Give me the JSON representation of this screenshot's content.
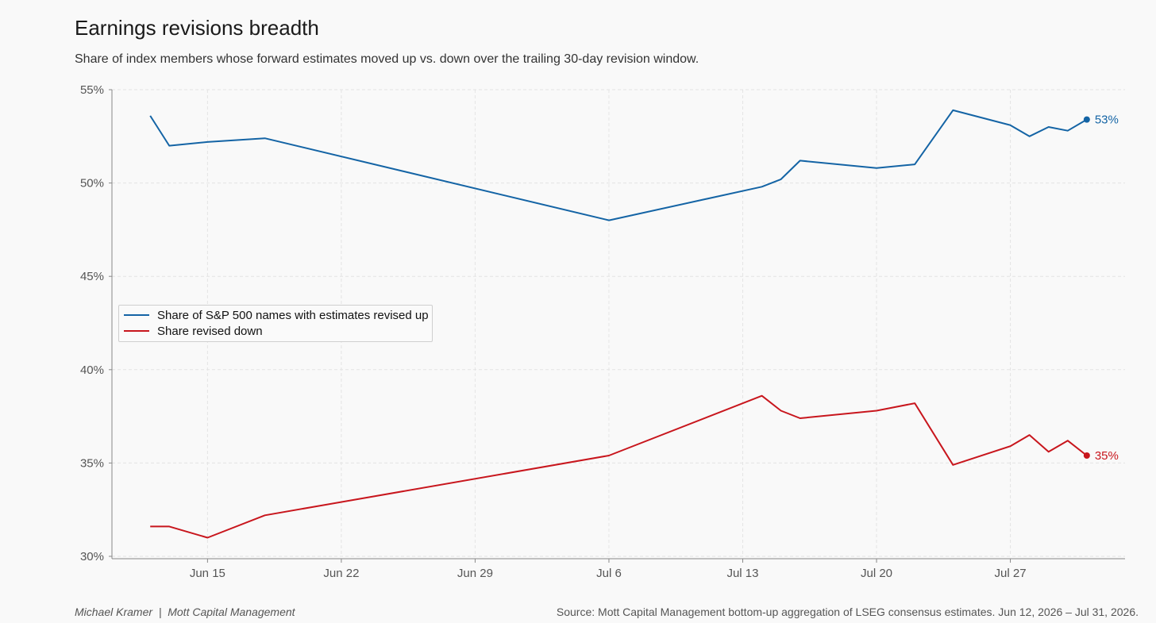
{
  "title": "Earnings revisions breadth",
  "subtitle": "Share of index members whose forward estimates moved up vs. down over the trailing 30-day revision window.",
  "footer": {
    "author": "Michael Kramer",
    "separator": "|",
    "org": "Mott Capital Management",
    "source": "Source: Mott Capital Management bottom-up aggregation of LSEG consensus estimates. Jun 12, 2026 – Jul 31, 2026."
  },
  "chart_data": {
    "type": "line",
    "x_ticks": [
      "Jun 15",
      "Jun 22",
      "Jun 29",
      "Jul 6",
      "Jul 13",
      "Jul 20",
      "Jul 27"
    ],
    "y_ticks": [
      "30%",
      "35%",
      "40%",
      "45%",
      "50%",
      "55%"
    ],
    "ylim": [
      30,
      55
    ],
    "xlim": [
      "2026-06-10",
      "2026-08-02"
    ],
    "grid": true,
    "legend_position": "center-left",
    "series": [
      {
        "name": "Share of S&P 500 names with estimates revised up",
        "color": "#1464a5",
        "end_label": "53%",
        "points": [
          [
            "2026-06-12",
            53.6
          ],
          [
            "2026-06-13",
            52.0
          ],
          [
            "2026-06-15",
            52.2
          ],
          [
            "2026-06-18",
            52.4
          ],
          [
            "2026-07-06",
            48.0
          ],
          [
            "2026-07-14",
            49.8
          ],
          [
            "2026-07-15",
            50.2
          ],
          [
            "2026-07-16",
            51.2
          ],
          [
            "2026-07-20",
            50.8
          ],
          [
            "2026-07-22",
            51.0
          ],
          [
            "2026-07-24",
            53.9
          ],
          [
            "2026-07-27",
            53.1
          ],
          [
            "2026-07-28",
            52.5
          ],
          [
            "2026-07-29",
            53.0
          ],
          [
            "2026-07-30",
            52.8
          ],
          [
            "2026-07-31",
            53.4
          ]
        ]
      },
      {
        "name": "Share revised down",
        "color": "#c8161d",
        "end_label": "35%",
        "points": [
          [
            "2026-06-12",
            31.6
          ],
          [
            "2026-06-13",
            31.6
          ],
          [
            "2026-06-15",
            31.0
          ],
          [
            "2026-06-18",
            32.2
          ],
          [
            "2026-07-06",
            35.4
          ],
          [
            "2026-07-14",
            38.6
          ],
          [
            "2026-07-15",
            37.8
          ],
          [
            "2026-07-16",
            37.4
          ],
          [
            "2026-07-20",
            37.8
          ],
          [
            "2026-07-22",
            38.2
          ],
          [
            "2026-07-24",
            34.9
          ],
          [
            "2026-07-27",
            35.9
          ],
          [
            "2026-07-28",
            36.5
          ],
          [
            "2026-07-29",
            35.6
          ],
          [
            "2026-07-30",
            36.2
          ],
          [
            "2026-07-31",
            35.4
          ]
        ]
      }
    ]
  }
}
